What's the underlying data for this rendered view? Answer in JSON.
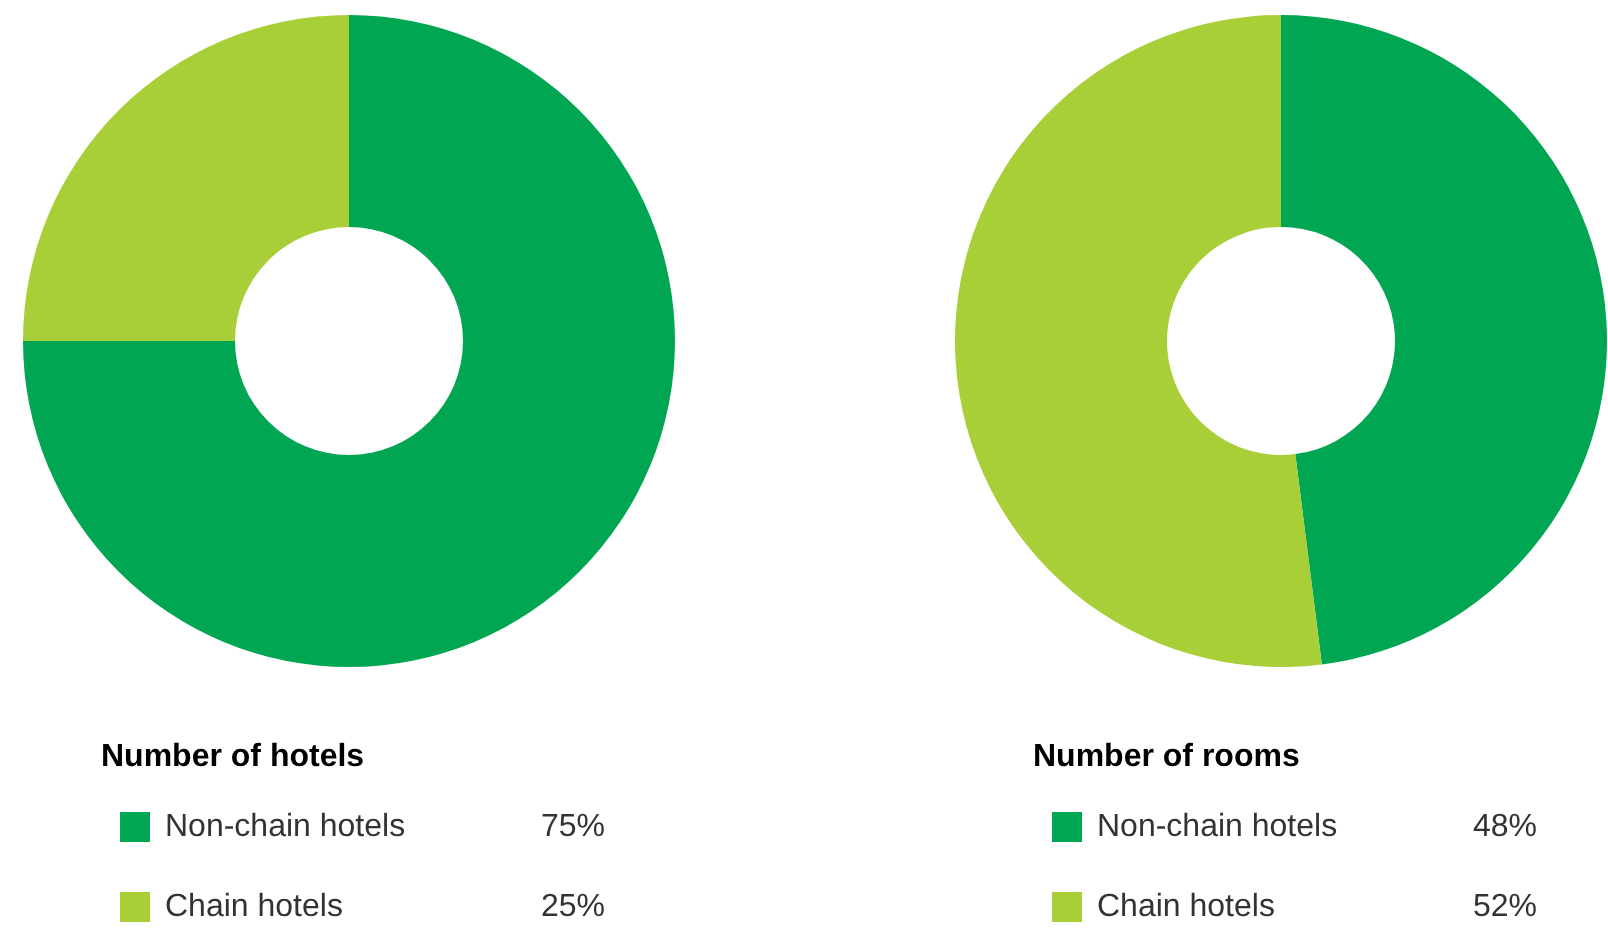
{
  "chart_data": [
    {
      "type": "donut",
      "title": "Number of hotels",
      "categories": [
        "Non-chain hotels",
        "Chain hotels"
      ],
      "values": [
        75,
        25
      ],
      "colors": [
        "#00a651",
        "#a8cf38"
      ],
      "value_labels": [
        "75%",
        "25%"
      ],
      "legend": "bottom"
    },
    {
      "type": "donut",
      "title": "Number of rooms",
      "categories": [
        "Non-chain hotels",
        "Chain hotels"
      ],
      "values": [
        48,
        52
      ],
      "colors": [
        "#00a651",
        "#a8cf38"
      ],
      "value_labels": [
        "48%",
        "52%"
      ],
      "legend": "bottom"
    }
  ]
}
